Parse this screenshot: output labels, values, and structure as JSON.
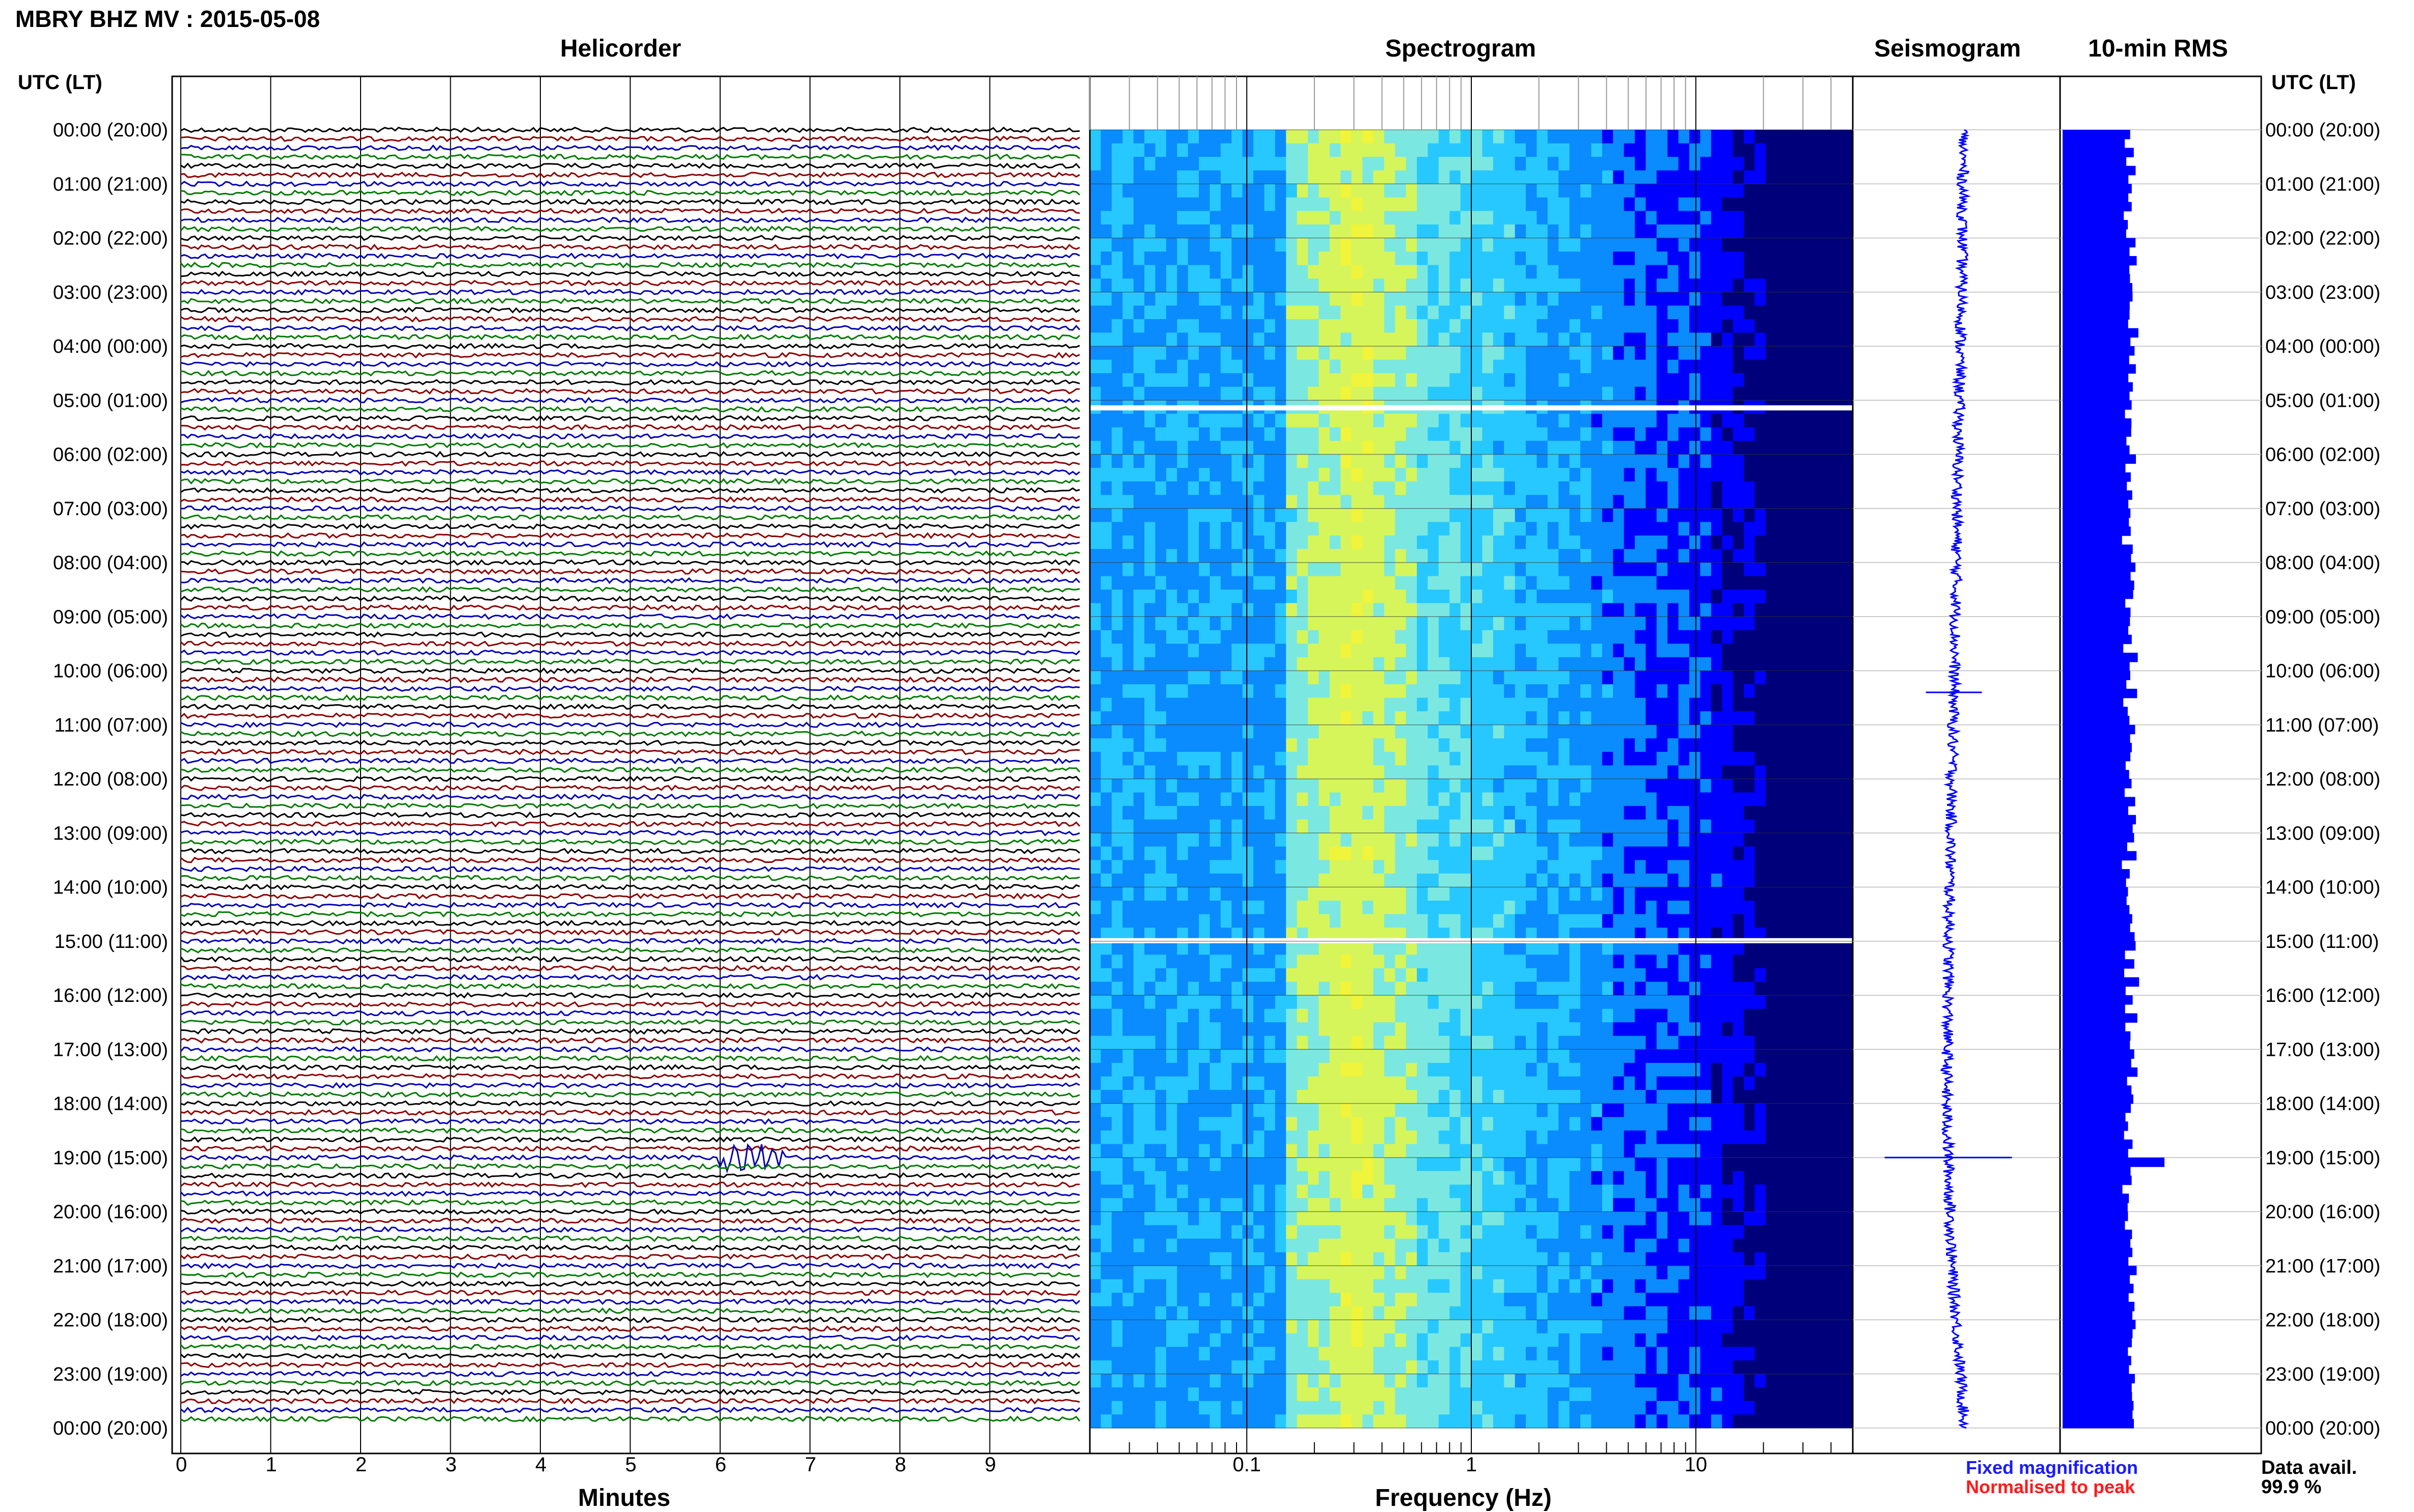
{
  "header": {
    "title": "MBRY BHZ MV : 2015-05-08"
  },
  "panels": {
    "helicorder": "Helicorder",
    "spectrogram": "Spectrogram",
    "seismogram": "Seismogram",
    "rms": "10-min RMS"
  },
  "axis": {
    "left_heading": "UTC (LT)",
    "right_heading": "UTC (LT)",
    "helicorder_xlabel": "Minutes",
    "spectrogram_xlabel": "Frequency (Hz)"
  },
  "legend": {
    "fixed": "Fixed magnification",
    "normalised": "Normalised to peak",
    "fixed_color": "#1a1aff",
    "normalised_color": "#ff1a1a",
    "data_avail_label": "Data avail.",
    "data_avail_value": "99.9 %"
  },
  "colors": {
    "trace_cycle": [
      "#000000",
      "#8b0000",
      "#0000b4",
      "#007a00"
    ],
    "seismogram": "#0000ff",
    "rms_bar": "#0000ff",
    "grid": "#000000"
  },
  "chart_data": [
    {
      "type": "line",
      "title": "Helicorder",
      "xlabel": "Minutes",
      "xlim": [
        0,
        10
      ],
      "x_ticks": [
        "0",
        "1",
        "2",
        "3",
        "4",
        "5",
        "6",
        "7",
        "8",
        "9"
      ],
      "trace_interval_min": 10,
      "traces_count": 144,
      "y_ticks_left": [
        "00:00 (20:00)",
        "01:00 (21:00)",
        "02:00 (22:00)",
        "03:00 (23:00)",
        "04:00 (00:00)",
        "05:00 (01:00)",
        "06:00 (02:00)",
        "07:00 (03:00)",
        "08:00 (04:00)",
        "09:00 (05:00)",
        "10:00 (06:00)",
        "11:00 (07:00)",
        "12:00 (08:00)",
        "13:00 (09:00)",
        "14:00 (10:00)",
        "15:00 (11:00)",
        "16:00 (12:00)",
        "17:00 (13:00)",
        "18:00 (14:00)",
        "19:00 (15:00)",
        "20:00 (16:00)",
        "21:00 (17:00)",
        "22:00 (18:00)",
        "23:00 (19:00)",
        "00:00 (20:00)"
      ],
      "events": [
        {
          "utc_hour": 19.0,
          "minute": 6.35,
          "relative_amplitude": 6
        }
      ]
    },
    {
      "type": "heatmap",
      "title": "Spectrogram",
      "xlabel": "Frequency (Hz)",
      "x_scale": "log",
      "xlim": [
        0.02,
        50
      ],
      "x_ticks": [
        "0.1",
        "1",
        "10"
      ],
      "ylim_hours": [
        0,
        24
      ],
      "colormap": [
        "#00007a",
        "#0000ff",
        "#0a8cff",
        "#27c8ff",
        "#7ae8e0",
        "#d6f55a",
        "#f0f43a"
      ],
      "peak_band_hz": [
        0.2,
        0.5
      ],
      "gaps_utc_hours": [
        5.15,
        15.0
      ]
    },
    {
      "type": "line",
      "title": "Seismogram",
      "ylim_hours": [
        0,
        24
      ],
      "drift_utc_hours": [
        0,
        3,
        6,
        9,
        12,
        15,
        18,
        21,
        24
      ],
      "drift_rel": [
        0.1,
        0.08,
        0.03,
        0.0,
        -0.05,
        -0.09,
        -0.12,
        -0.05,
        0.12
      ],
      "spikes_utc_hours": [
        10.4,
        19.0
      ]
    },
    {
      "type": "bar",
      "title": "10-min RMS",
      "ylim_hours": [
        0,
        24
      ],
      "bars_relative": [
        0.82,
        0.75,
        0.8,
        0.72,
        0.85,
        0.77,
        0.8,
        0.76,
        0.82,
        0.72,
        0.78,
        0.74,
        0.8,
        0.75,
        0.82,
        0.78,
        0.76,
        0.8
      ],
      "peak_utc_hour": 19.0,
      "peak_relative": 1.0
    }
  ]
}
